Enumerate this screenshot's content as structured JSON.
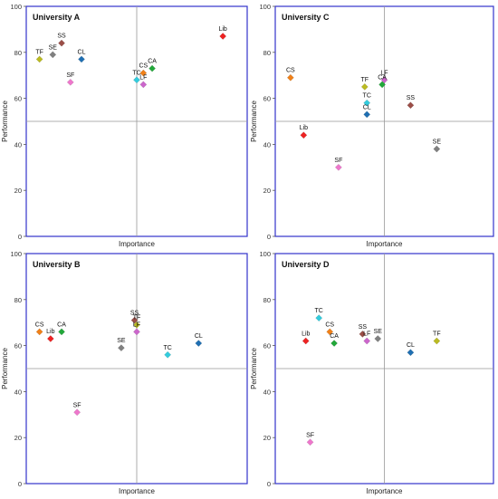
{
  "colors": {
    "frame": "#3333cc",
    "quadrant_line": "#999999",
    "Lib": "#ee2222",
    "SS": "#9b4e47",
    "SE": "#808080",
    "TF": "#bbbb22",
    "CL": "#1f6fb2",
    "CS": "#f08018",
    "CA": "#22a83a",
    "TC": "#33ccdd",
    "LF": "#cc66cc",
    "SF": "#ee77cc"
  },
  "chart_data": [
    {
      "type": "scatter",
      "title": "University A",
      "xlabel": "Importance",
      "ylabel": "Performance",
      "ylim": [
        0,
        100
      ],
      "yticks": [
        "0",
        "20",
        "40",
        "60",
        "80",
        "100"
      ],
      "xlim": [
        0,
        10
      ],
      "x_divider": 5,
      "y_divider": 50,
      "points": [
        {
          "label": "SS",
          "x": 1.6,
          "y": 84
        },
        {
          "label": "SE",
          "x": 1.2,
          "y": 79
        },
        {
          "label": "TF",
          "x": 0.6,
          "y": 77
        },
        {
          "label": "CL",
          "x": 2.5,
          "y": 77
        },
        {
          "label": "SF",
          "x": 2.0,
          "y": 67
        },
        {
          "label": "CS",
          "x": 5.3,
          "y": 71
        },
        {
          "label": "CA",
          "x": 5.7,
          "y": 73
        },
        {
          "label": "TC",
          "x": 5.0,
          "y": 68
        },
        {
          "label": "LF",
          "x": 5.3,
          "y": 66
        },
        {
          "label": "Lib",
          "x": 8.9,
          "y": 87
        }
      ]
    },
    {
      "type": "scatter",
      "title": "University C",
      "xlabel": "Importance",
      "ylabel": "Performance",
      "ylim": [
        0,
        100
      ],
      "yticks": [
        "0",
        "20",
        "40",
        "60",
        "80",
        "100"
      ],
      "xlim": [
        0,
        10
      ],
      "x_divider": 5,
      "y_divider": 50,
      "points": [
        {
          "label": "CS",
          "x": 0.7,
          "y": 69
        },
        {
          "label": "Lib",
          "x": 1.3,
          "y": 44
        },
        {
          "label": "TF",
          "x": 4.1,
          "y": 65
        },
        {
          "label": "LF",
          "x": 5.0,
          "y": 68
        },
        {
          "label": "CA",
          "x": 4.9,
          "y": 66
        },
        {
          "label": "TC",
          "x": 4.2,
          "y": 58
        },
        {
          "label": "CL",
          "x": 4.2,
          "y": 53
        },
        {
          "label": "SS",
          "x": 6.2,
          "y": 57
        },
        {
          "label": "SE",
          "x": 7.4,
          "y": 38
        },
        {
          "label": "SF",
          "x": 2.9,
          "y": 30
        }
      ]
    },
    {
      "type": "scatter",
      "title": "University B",
      "xlabel": "Importance",
      "ylabel": "Performance",
      "ylim": [
        0,
        100
      ],
      "yticks": [
        "0",
        "20",
        "40",
        "60",
        "80",
        "100"
      ],
      "xlim": [
        0,
        10
      ],
      "x_divider": 5,
      "y_divider": 50,
      "points": [
        {
          "label": "CS",
          "x": 0.6,
          "y": 66
        },
        {
          "label": "Lib",
          "x": 1.1,
          "y": 63
        },
        {
          "label": "CA",
          "x": 1.6,
          "y": 66
        },
        {
          "label": "SS",
          "x": 4.9,
          "y": 71
        },
        {
          "label": "TF",
          "x": 5.0,
          "y": 69
        },
        {
          "label": "LF",
          "x": 5.0,
          "y": 66
        },
        {
          "label": "SE",
          "x": 4.3,
          "y": 59
        },
        {
          "label": "TC",
          "x": 6.4,
          "y": 56
        },
        {
          "label": "CL",
          "x": 7.8,
          "y": 61
        },
        {
          "label": "SF",
          "x": 2.3,
          "y": 31
        }
      ]
    },
    {
      "type": "scatter",
      "title": "University D",
      "xlabel": "Importance",
      "ylabel": "Performance",
      "ylim": [
        0,
        100
      ],
      "yticks": [
        "0",
        "20",
        "40",
        "60",
        "80",
        "100"
      ],
      "xlim": [
        0,
        10
      ],
      "x_divider": 5,
      "y_divider": 50,
      "points": [
        {
          "label": "TC",
          "x": 2.0,
          "y": 72
        },
        {
          "label": "CS",
          "x": 2.5,
          "y": 66
        },
        {
          "label": "Lib",
          "x": 1.4,
          "y": 62
        },
        {
          "label": "CA",
          "x": 2.7,
          "y": 61
        },
        {
          "label": "SS",
          "x": 4.0,
          "y": 65
        },
        {
          "label": "LF",
          "x": 4.2,
          "y": 62
        },
        {
          "label": "SE",
          "x": 4.7,
          "y": 63
        },
        {
          "label": "CL",
          "x": 6.2,
          "y": 57
        },
        {
          "label": "TF",
          "x": 7.4,
          "y": 62
        },
        {
          "label": "SF",
          "x": 1.6,
          "y": 18
        }
      ]
    }
  ]
}
